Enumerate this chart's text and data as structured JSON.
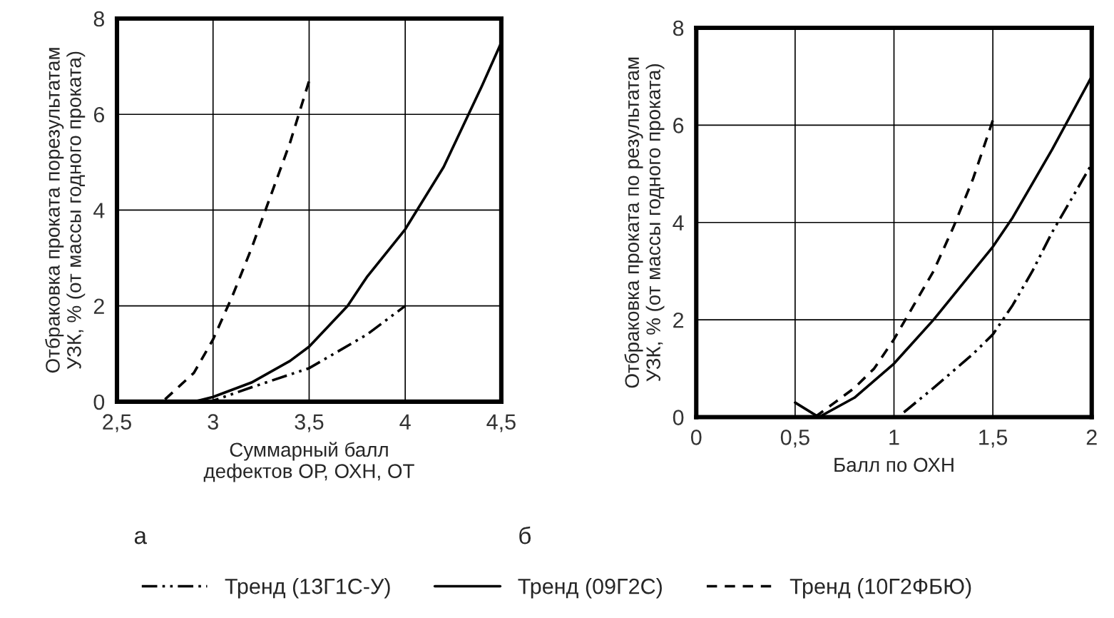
{
  "chart_data": [
    {
      "type": "line",
      "xlabel": "Суммарный балл\nдефектов ОР, ОХН, ОТ",
      "ylabel": "Отбраковка проката порезультатам\nУЗК, % (от массы годного проката)",
      "xlim": [
        2.5,
        4.5
      ],
      "xticks": [
        {
          "value": 2.5,
          "label": "2,5"
        },
        3,
        {
          "value": 3.5,
          "label": "3,5"
        },
        4,
        {
          "value": 4.5,
          "label": "4,5"
        }
      ],
      "ylim": [
        0,
        8
      ],
      "yticks": [
        0,
        2,
        4,
        6,
        8
      ],
      "grid": true,
      "legend": "bottom",
      "annotations": [
        "а"
      ],
      "series": [
        {
          "name": "Тренд (13Г1С-У)",
          "color": "#000000",
          "line_style": "dashdot",
          "x": [
            2.95,
            3.0,
            3.2,
            3.5,
            3.8,
            4.0
          ],
          "values": [
            0,
            0.02,
            0.3,
            0.7,
            1.4,
            2.0
          ]
        },
        {
          "name": "Тренд (09Г2С)",
          "color": "#000000",
          "line_style": "solid",
          "x": [
            2.5,
            2.9,
            3.0,
            3.2,
            3.4,
            3.5,
            3.7,
            3.8,
            4.0,
            4.2,
            4.4,
            4.5
          ],
          "values": [
            0,
            0,
            0.1,
            0.4,
            0.85,
            1.15,
            2.0,
            2.6,
            3.6,
            4.9,
            6.6,
            7.5
          ]
        },
        {
          "name": "Тренд (10Г2ФБЮ)",
          "color": "#000000",
          "line_style": "dashed",
          "x": [
            2.75,
            2.9,
            3.0,
            3.1,
            3.2,
            3.3,
            3.4,
            3.5
          ],
          "values": [
            0.05,
            0.6,
            1.3,
            2.2,
            3.2,
            4.3,
            5.4,
            6.7
          ]
        }
      ]
    },
    {
      "type": "line",
      "xlabel": "Балл по ОХН",
      "ylabel": "Отбраковка проката по результатам\nУЗК, % (от массы годного проката)",
      "xlim": [
        0,
        2
      ],
      "xticks": [
        0,
        {
          "value": 0.5,
          "label": "0,5"
        },
        1,
        {
          "value": 1.5,
          "label": "1,5"
        },
        2
      ],
      "ylim": [
        0,
        8
      ],
      "yticks": [
        0,
        2,
        4,
        6,
        8
      ],
      "grid": true,
      "annotations": [
        "б"
      ],
      "series": [
        {
          "color": "#000000",
          "line_style": "dashdot",
          "x": [
            1.05,
            1.2,
            1.4,
            1.5,
            1.6,
            1.7,
            1.8,
            1.9,
            2.0
          ],
          "values": [
            0.1,
            0.6,
            1.3,
            1.7,
            2.3,
            3.0,
            3.8,
            4.5,
            5.2
          ]
        },
        {
          "color": "#000000",
          "line_style": "solid",
          "x": [
            0.5,
            0.62,
            0.8,
            1.0,
            1.2,
            1.4,
            1.5,
            1.6,
            1.8,
            2.0
          ],
          "values": [
            0.3,
            0,
            0.4,
            1.1,
            2.0,
            3.0,
            3.5,
            4.1,
            5.5,
            7.0
          ]
        },
        {
          "color": "#000000",
          "line_style": "dashed",
          "x": [
            0.6,
            0.7,
            0.8,
            0.9,
            1.0,
            1.1,
            1.2,
            1.3,
            1.4,
            1.5
          ],
          "values": [
            0,
            0.3,
            0.6,
            1.0,
            1.6,
            2.3,
            3.0,
            3.9,
            4.9,
            6.1
          ]
        }
      ]
    }
  ]
}
